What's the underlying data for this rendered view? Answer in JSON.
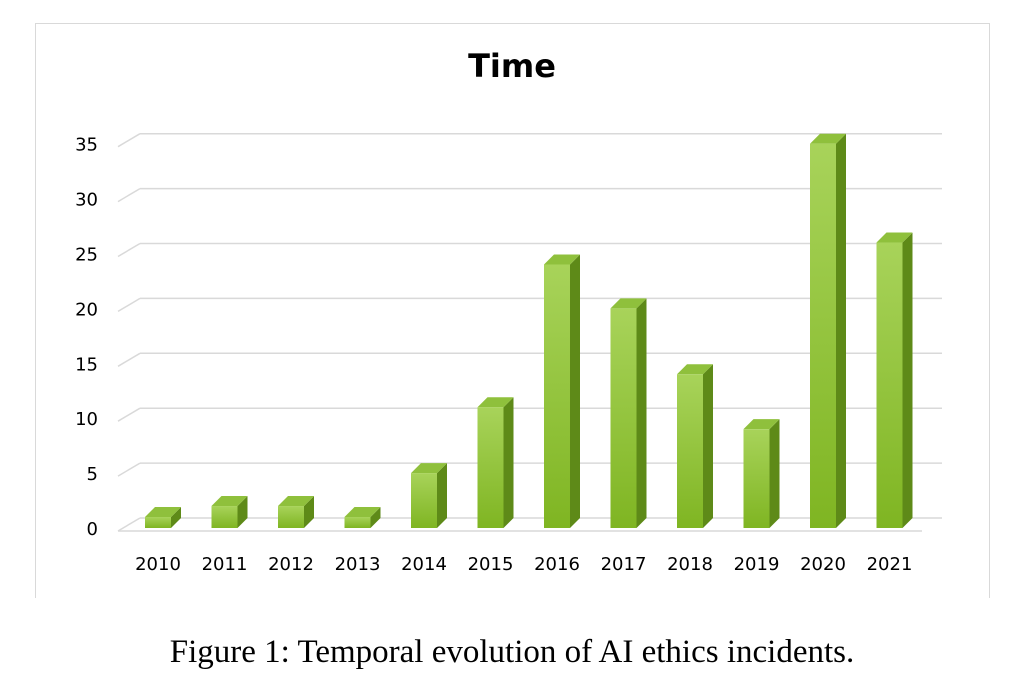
{
  "chart_data": {
    "type": "bar",
    "title": "Time",
    "xlabel": "",
    "ylabel": "",
    "categories": [
      "2010",
      "2011",
      "2012",
      "2013",
      "2014",
      "2015",
      "2016",
      "2017",
      "2018",
      "2019",
      "2020",
      "2021"
    ],
    "values": [
      1,
      2,
      2,
      1,
      5,
      11,
      24,
      20,
      14,
      9,
      35,
      26
    ],
    "ylim": [
      0,
      35
    ],
    "yticks": [
      0,
      5,
      10,
      15,
      20,
      25,
      30,
      35
    ],
    "grid": true,
    "legend": "none",
    "style": "3d-column",
    "colors": {
      "bar_front_top": "#a8d35a",
      "bar_front_bottom": "#7fb522",
      "bar_side": "#5e8a18",
      "bar_top": "#8fc03c",
      "gridline": "#d9d9d9"
    }
  },
  "caption": "Figure 1: Temporal evolution of AI ethics incidents."
}
